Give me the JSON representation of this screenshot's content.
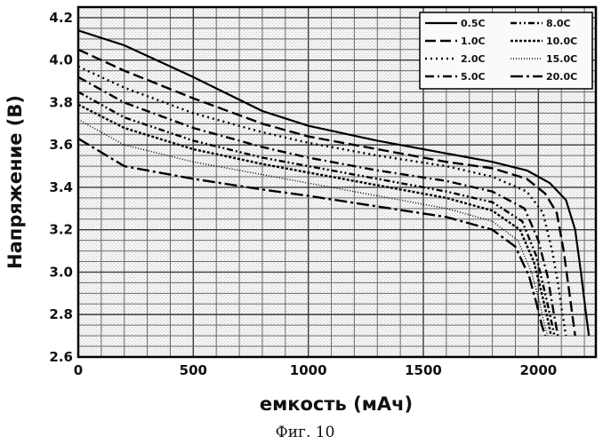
{
  "chart_data": {
    "type": "line",
    "title": "",
    "xlabel": "емкость (мАч)",
    "ylabel": "Напряжение (В)",
    "xlim": [
      0,
      2250
    ],
    "ylim": [
      2.6,
      4.25
    ],
    "x_ticks": [
      "0",
      "500",
      "1000",
      "1500",
      "2000"
    ],
    "x_tick_values": [
      0,
      500,
      1000,
      1500,
      2000
    ],
    "y_ticks": [
      "2.6",
      "2.8",
      "3.0",
      "3.2",
      "3.4",
      "3.6",
      "3.8",
      "4.0",
      "4.2"
    ],
    "y_tick_values": [
      2.6,
      2.8,
      3.0,
      3.2,
      3.4,
      3.6,
      3.8,
      4.0,
      4.2
    ],
    "grid": true,
    "legend_position": "top-right",
    "series": [
      {
        "name": "0.5C",
        "dash": "solid",
        "x": [
          0,
          200,
          500,
          800,
          1000,
          1300,
          1600,
          1800,
          1950,
          2050,
          2120,
          2160,
          2185,
          2205,
          2220
        ],
        "y": [
          4.14,
          4.07,
          3.92,
          3.76,
          3.69,
          3.62,
          3.56,
          3.52,
          3.48,
          3.42,
          3.34,
          3.2,
          3.0,
          2.82,
          2.7
        ]
      },
      {
        "name": "1.0C",
        "dash": "long-dash",
        "x": [
          0,
          200,
          500,
          800,
          1000,
          1300,
          1600,
          1800,
          1950,
          2030,
          2080,
          2110,
          2135,
          2150,
          2160
        ],
        "y": [
          4.05,
          3.95,
          3.82,
          3.7,
          3.64,
          3.58,
          3.52,
          3.49,
          3.44,
          3.37,
          3.28,
          3.1,
          2.9,
          2.78,
          2.7
        ]
      },
      {
        "name": "2.0C",
        "dash": "dot",
        "x": [
          0,
          200,
          500,
          800,
          1000,
          1300,
          1600,
          1800,
          1950,
          2020,
          2060,
          2085,
          2105,
          2120
        ],
        "y": [
          3.97,
          3.87,
          3.75,
          3.66,
          3.61,
          3.55,
          3.5,
          3.45,
          3.38,
          3.28,
          3.1,
          2.95,
          2.8,
          2.7
        ]
      },
      {
        "name": "5.0C",
        "dash": "dash-dot",
        "x": [
          0,
          200,
          500,
          800,
          1000,
          1300,
          1600,
          1800,
          1940,
          2000,
          2040,
          2065,
          2085
        ],
        "y": [
          3.92,
          3.8,
          3.68,
          3.59,
          3.54,
          3.48,
          3.43,
          3.38,
          3.3,
          3.15,
          2.98,
          2.82,
          2.7
        ]
      },
      {
        "name": "8.0C",
        "dash": "dash-dot-dot",
        "x": [
          0,
          200,
          500,
          800,
          1000,
          1300,
          1600,
          1800,
          1930,
          1990,
          2025,
          2050,
          2070
        ],
        "y": [
          3.85,
          3.73,
          3.62,
          3.54,
          3.5,
          3.44,
          3.38,
          3.33,
          3.24,
          3.08,
          2.92,
          2.8,
          2.7
        ]
      },
      {
        "name": "10.0C",
        "dash": "dense-dot",
        "x": [
          0,
          200,
          500,
          800,
          1000,
          1300,
          1600,
          1800,
          1920,
          1980,
          2015,
          2040,
          2055
        ],
        "y": [
          3.79,
          3.68,
          3.58,
          3.51,
          3.47,
          3.41,
          3.35,
          3.29,
          3.2,
          3.05,
          2.9,
          2.78,
          2.7
        ]
      },
      {
        "name": "15.0C",
        "dash": "fine-dot",
        "x": [
          0,
          200,
          500,
          800,
          1000,
          1300,
          1600,
          1800,
          1910,
          1970,
          2005,
          2025,
          2040
        ],
        "y": [
          3.72,
          3.6,
          3.52,
          3.46,
          3.42,
          3.36,
          3.3,
          3.24,
          3.15,
          3.0,
          2.86,
          2.76,
          2.7
        ]
      },
      {
        "name": "20.0C",
        "dash": "long-dash-dot",
        "x": [
          0,
          200,
          500,
          800,
          1000,
          1300,
          1600,
          1800,
          1900,
          1960,
          1995,
          2015,
          2030
        ],
        "y": [
          3.63,
          3.5,
          3.44,
          3.39,
          3.36,
          3.31,
          3.26,
          3.2,
          3.12,
          2.98,
          2.84,
          2.75,
          2.7
        ]
      }
    ]
  },
  "caption": "Фиг. 10"
}
